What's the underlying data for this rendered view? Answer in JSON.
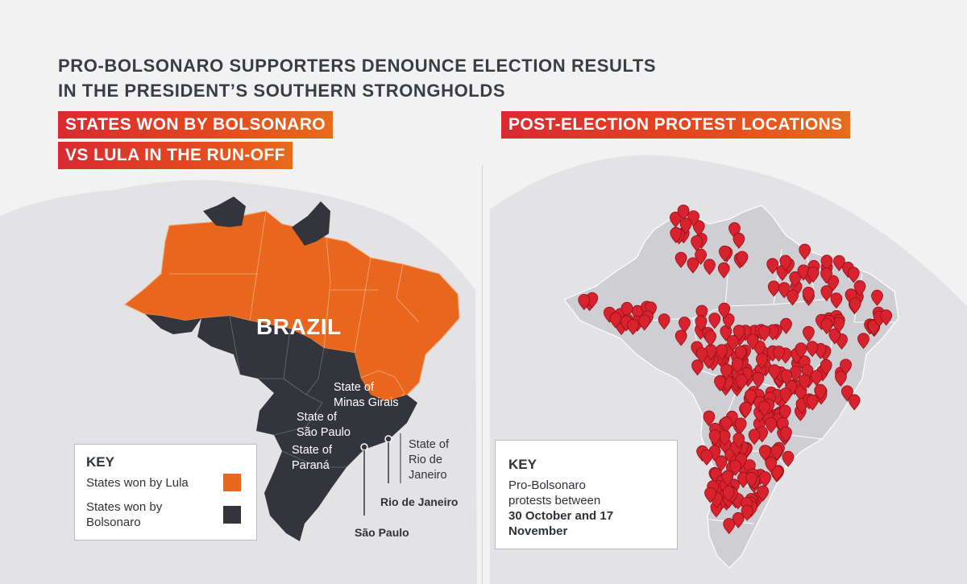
{
  "title": {
    "line1": "PRO-BOLSONARO SUPPORTERS DENOUNCE ELECTION RESULTS",
    "line2": "IN THE PRESIDENT’S SOUTHERN STRONGHOLDS"
  },
  "left_panel": {
    "banner_line1": "STATES WON BY BOLSONARO",
    "banner_line2": "VS LULA IN THE RUN-OFF",
    "country_label": "BRAZIL",
    "state_labels": {
      "minas_gerais": "State of\nMinas Girais",
      "sao_paulo": "State of\nSão Paulo",
      "parana": "State of\nParaná",
      "rio_de_janeiro": "State of\nRio de\nJaneiro"
    },
    "city_labels": {
      "rio_de_janeiro": "Rio de Janeiro",
      "sao_paulo": "São Paulo"
    },
    "key": {
      "title": "KEY",
      "lula_label": "States won by Lula",
      "bolsonaro_label": "States won by\nBolsonaro"
    }
  },
  "right_panel": {
    "banner": "POST-ELECTION PROTEST LOCATIONS",
    "key": {
      "title": "KEY",
      "protest_label_regular": "Pro-Bolsonaro\nprotests between",
      "protest_label_bold": "30 October and 17\nNovember"
    }
  },
  "colors": {
    "lula": "#e8661e",
    "bolsonaro": "#34353c",
    "protest_marker": "#d8222e",
    "background_land": "#e3e3e5",
    "brazil_land_right": "#cfcfd3"
  },
  "protest_marker_count": 300
}
